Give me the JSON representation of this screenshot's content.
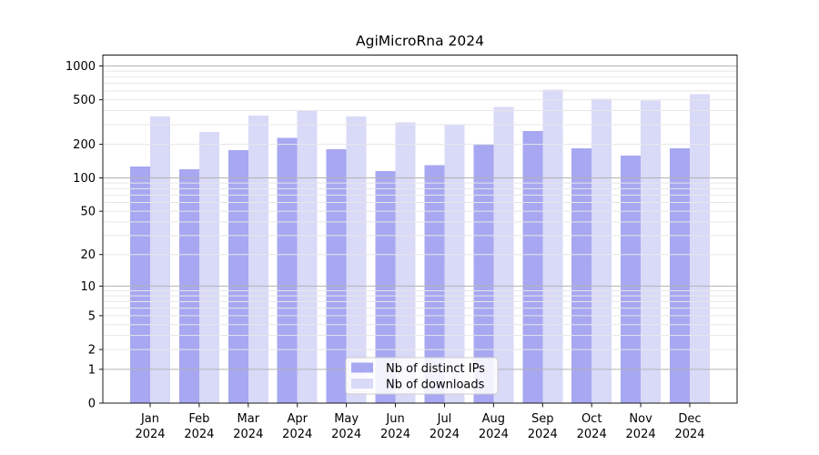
{
  "chart_data": {
    "type": "bar",
    "title": "AgiMicroRna 2024",
    "categories": [
      "Jan",
      "Feb",
      "Mar",
      "Apr",
      "May",
      "Jun",
      "Jul",
      "Aug",
      "Sep",
      "Oct",
      "Nov",
      "Dec"
    ],
    "category_year": "2024",
    "series": [
      {
        "name": "Nb of distinct IPs",
        "color": "#a7a7f2",
        "values": [
          127,
          120,
          178,
          228,
          180,
          115,
          130,
          199,
          262,
          184,
          159,
          184
        ]
      },
      {
        "name": "Nb of downloads",
        "color": "#d9d9f8",
        "values": [
          356,
          259,
          362,
          395,
          356,
          315,
          296,
          433,
          617,
          509,
          490,
          562
        ]
      }
    ],
    "yticks": [
      0,
      1,
      2,
      5,
      10,
      20,
      50,
      100,
      200,
      500,
      1000
    ],
    "major_gridlines": [
      1,
      10,
      100,
      1000
    ],
    "minor_gridlines": [
      2,
      3,
      4,
      5,
      6,
      7,
      8,
      9,
      20,
      30,
      40,
      50,
      60,
      70,
      80,
      90,
      200,
      300,
      400,
      500,
      600,
      700,
      800,
      900
    ],
    "scale": "log10(value+1)",
    "ylim": [
      0,
      1230
    ],
    "xlabel": "",
    "ylabel": "",
    "grid": "horizontal, major and minor, drawn over bars",
    "legend": {
      "position": "lower center"
    }
  },
  "style": {
    "background": "#ffffff",
    "spine_color": "#1a1a1a",
    "major_grid_color": "#b3b3b3",
    "minor_grid_color": "#e7e7e7",
    "legend_border_color": "#cccccc",
    "legend_fill_color": "#ffffff"
  }
}
